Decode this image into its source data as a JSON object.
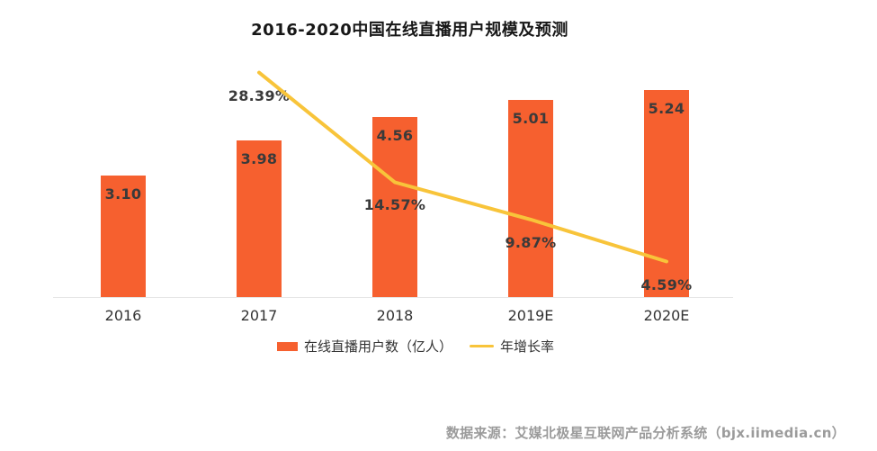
{
  "title": "2016-2020中国在线直播用户规模及预测",
  "source": "数据来源：艾媒北极星互联网产品分析系统（bjx.iimedia.cn）",
  "colors": {
    "bar": "#f6602f",
    "line": "#f8c43a",
    "axis": "#e6e6e6",
    "data_label": "#3a3a3a",
    "axis_label": "#333333",
    "source_text": "#9b9b9b",
    "background": "#ffffff"
  },
  "legend": [
    {
      "label": "在线直播用户数（亿人）",
      "swatch": "bar"
    },
    {
      "label": "年增长率",
      "swatch": "line"
    }
  ],
  "chart_data": {
    "type": "combo_bar_line",
    "title": "2016-2020中国在线直播用户规模及预测",
    "categories": [
      "2016",
      "2017",
      "2018",
      "2019E",
      "2020E"
    ],
    "series": [
      {
        "name": "在线直播用户数（亿人）",
        "type": "bar",
        "unit": "亿人",
        "values": [
          3.1,
          3.98,
          4.56,
          5.01,
          5.24
        ],
        "labels": [
          "3.10",
          "3.98",
          "4.56",
          "5.01",
          "5.24"
        ]
      },
      {
        "name": "年增长率",
        "type": "line",
        "unit": "%",
        "values": [
          null,
          28.39,
          14.57,
          9.87,
          4.59
        ],
        "labels": [
          null,
          "28.39%",
          "14.57%",
          "9.87%",
          "4.59%"
        ]
      }
    ],
    "xlabel": "",
    "ylabel": "",
    "y_left_range": [
      0,
      5.5
    ],
    "y_right_range": [
      0,
      30
    ],
    "grid": false,
    "legend_position": "bottom",
    "value_labels_shown": true
  }
}
